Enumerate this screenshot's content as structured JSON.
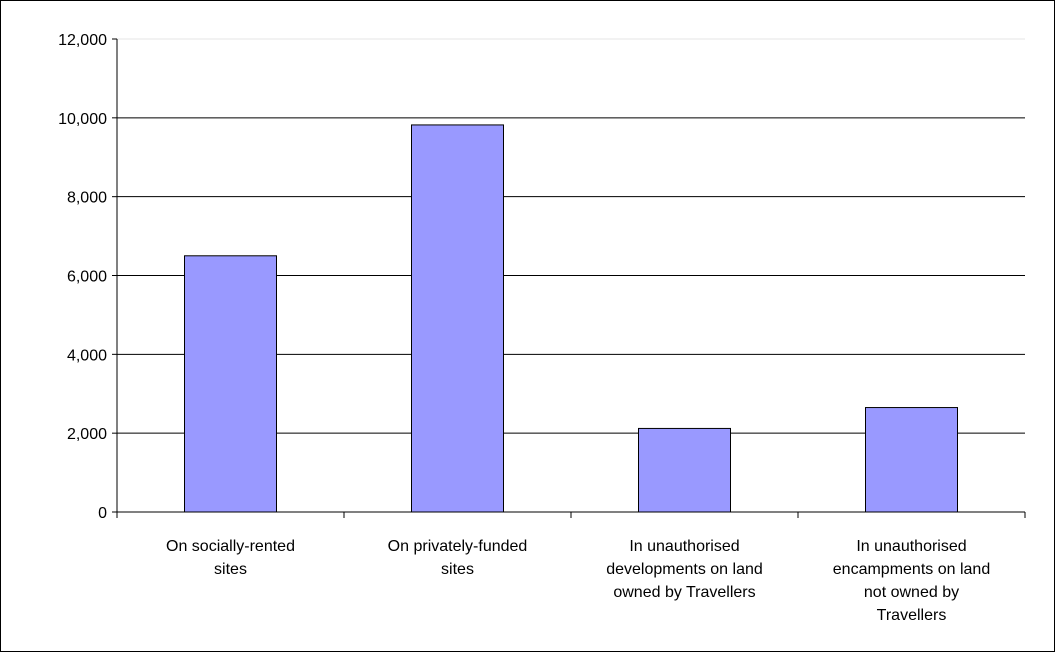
{
  "chart_data": {
    "type": "bar",
    "categories": [
      [
        "On socially-rented",
        "sites"
      ],
      [
        "On privately-funded",
        "sites"
      ],
      [
        "In unauthorised",
        "developments on land",
        "owned by Travellers"
      ],
      [
        "In unauthorised",
        "encampments on land",
        "not owned by",
        "Travellers"
      ]
    ],
    "values": [
      6500,
      9820,
      2120,
      2650
    ],
    "ylim": [
      0,
      12000
    ],
    "yticks": [
      0,
      2000,
      4000,
      6000,
      8000,
      10000,
      12000
    ],
    "ytick_labels": [
      "0",
      "2,000",
      "4,000",
      "6,000",
      "8,000",
      "10,000",
      "12,000"
    ],
    "grid": true,
    "legend": "none",
    "title": "",
    "xlabel": "",
    "ylabel": "",
    "colors": {
      "bar_fill": "#9999ff",
      "bar_stroke": "#000000",
      "grid": "#000000",
      "axis": "#000000"
    }
  }
}
